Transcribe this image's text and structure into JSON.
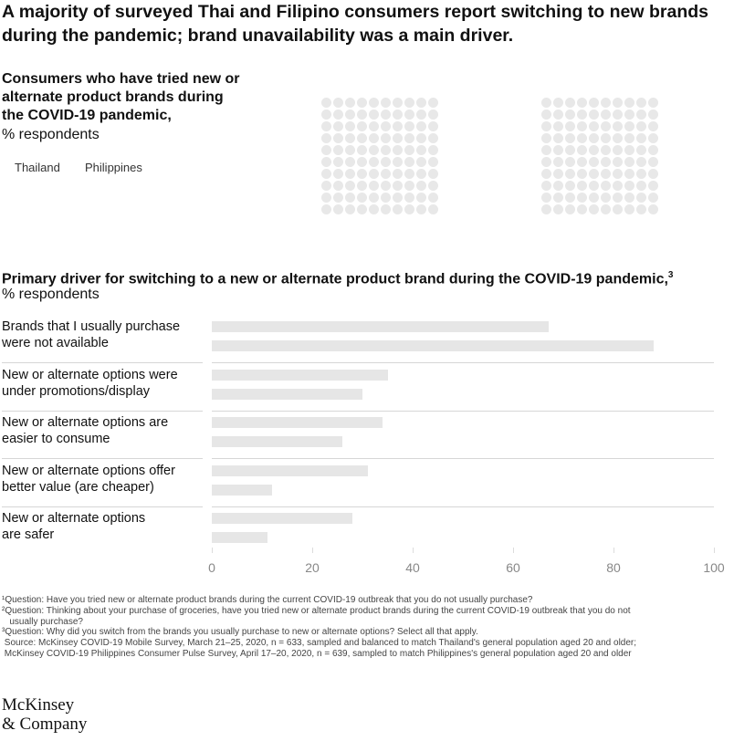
{
  "title": "A majority of surveyed Thai and Filipino consumers report switching to new brands during the pandemic; brand unavailability was a main driver.",
  "section1": {
    "title": "Consumers who have tried new or alternate product brands during the COVID-19 pandemic,",
    "unit": "% respondents",
    "legend": [
      "Thailand",
      "Philippines"
    ]
  },
  "section2": {
    "title": "Primary driver for switching to a new or alternate product brand during the COVID-19 pandemic,",
    "title_sup": "3",
    "unit": "% respondents"
  },
  "chart_data": {
    "type": "bar",
    "orientation": "horizontal",
    "categories": [
      [
        "Brands that I usually purchase",
        "were not available"
      ],
      [
        "New or alternate options were",
        "under promotions/display"
      ],
      [
        "New or alternate options are",
        "easier to consume"
      ],
      [
        "New or alternate options offer",
        "better value (are cheaper)"
      ],
      [
        "New or alternate options",
        "are safer"
      ]
    ],
    "series": [
      {
        "values": [
          67,
          35,
          34,
          31,
          28
        ]
      },
      {
        "values": [
          88,
          30,
          26,
          12,
          11
        ]
      }
    ],
    "xlim": [
      0,
      100
    ],
    "xticks": [
      "0",
      "20",
      "40",
      "60",
      "80",
      "100"
    ]
  },
  "colors": {
    "bar": "#e6e6e6",
    "dot": "#e8e8e8"
  },
  "footnotes": [
    "¹Question: Have you tried new or alternate product brands during the current COVID-19 outbreak that you do not usually purchase?",
    "²Question: Thinking about your purchase of groceries, have you tried new or alternate product brands during the current COVID-19 outbreak that you do not",
    "   usually purchase?",
    "³Question: Why did you switch from the brands you usually purchase to new or alternate options? Select all that apply.",
    " Source: McKinsey COVID-19 Mobile Survey, March 21–25, 2020, n = 633, sampled and balanced to match Thailand's general population aged 20 and older;",
    " McKinsey COVID-19 Philippines Consumer Pulse Survey, April 17–20, 2020, n = 639, sampled to match Philippines's general population aged 20 and older"
  ],
  "logo": [
    "McKinsey",
    "& Company"
  ]
}
